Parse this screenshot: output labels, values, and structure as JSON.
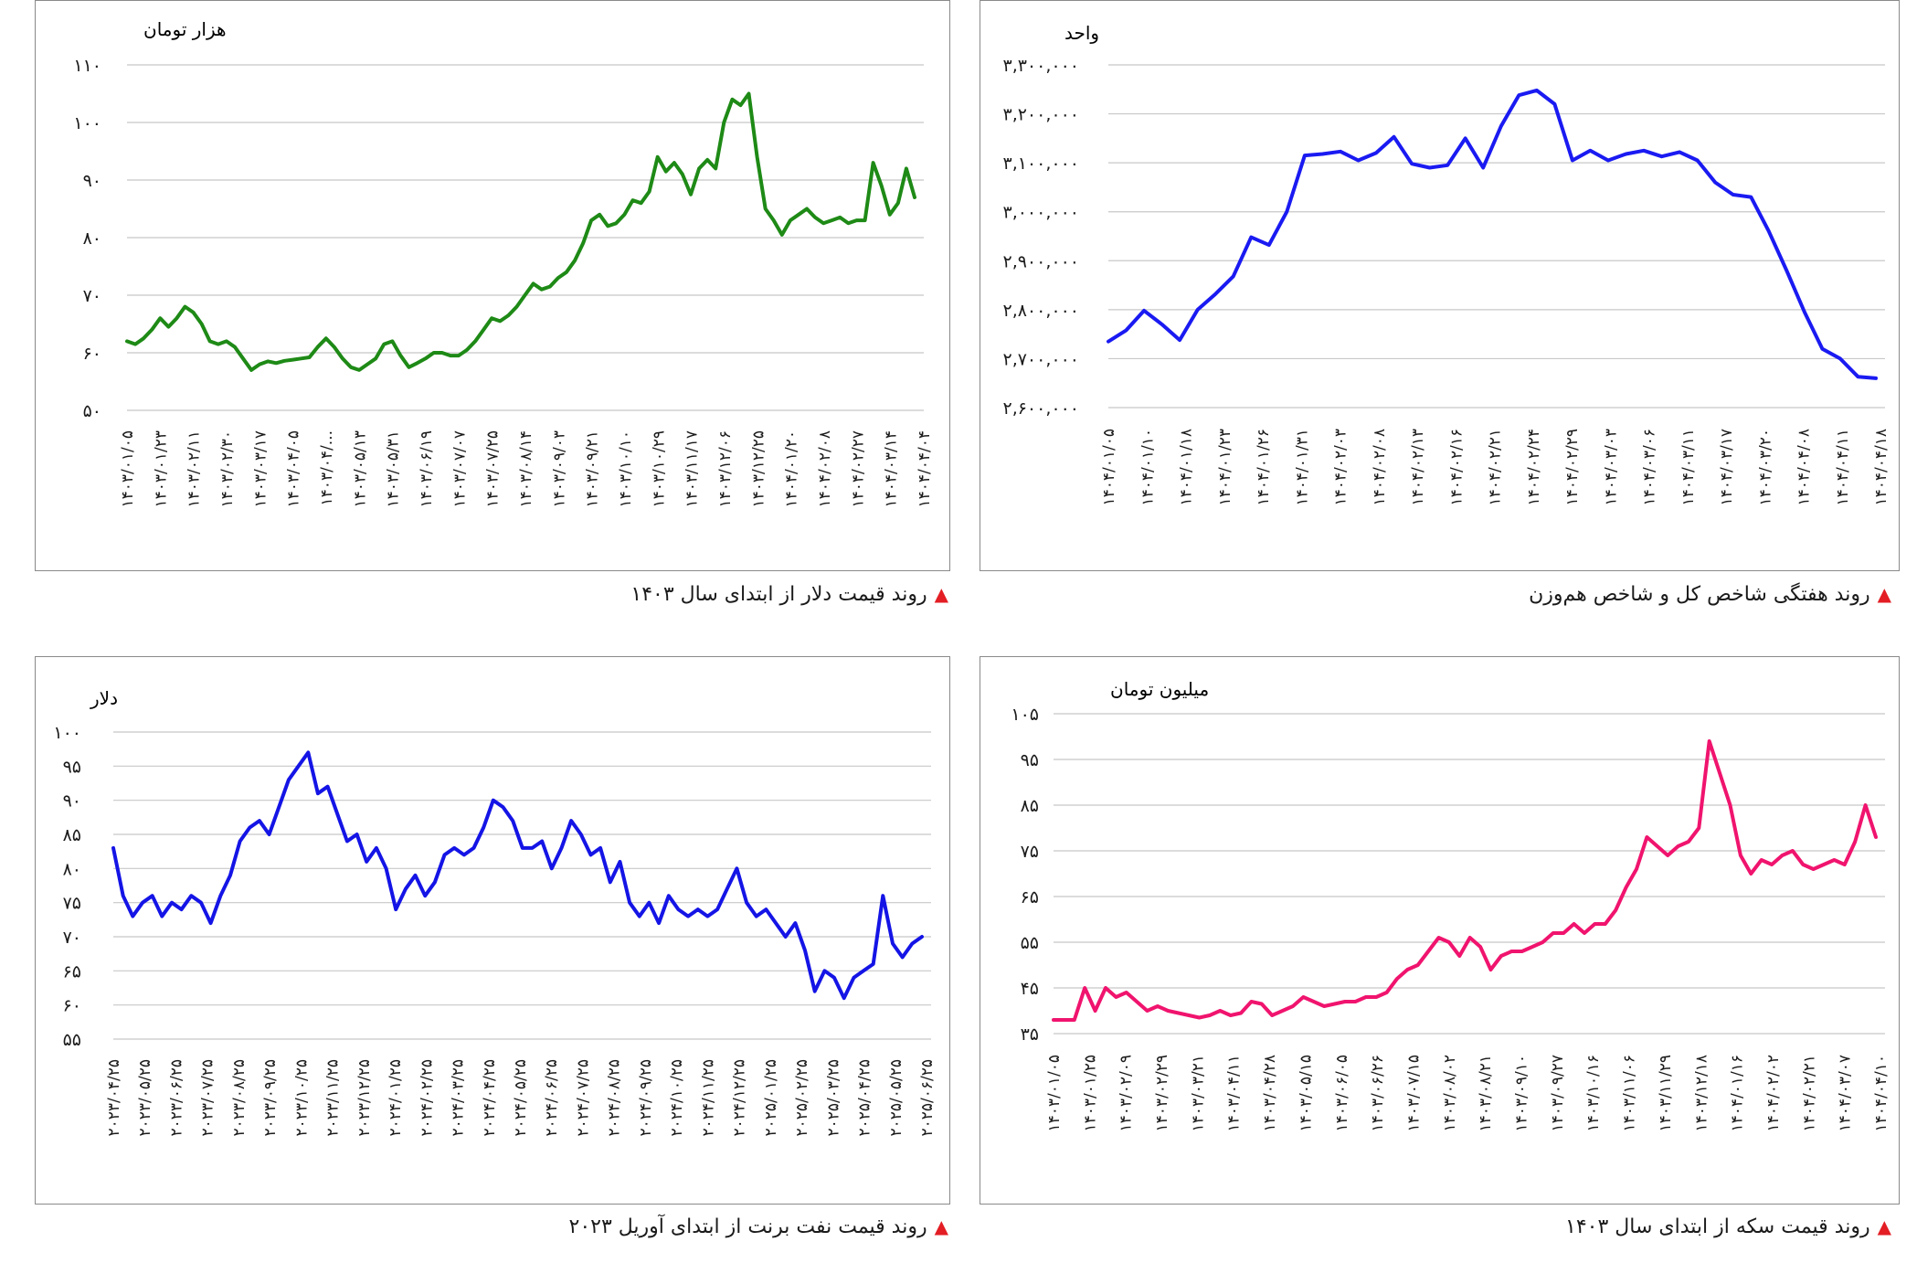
{
  "charts": [
    {
      "id": "dollar",
      "caption": "روند قیمت دلار از ابتدای سال ۱۴۰۳",
      "unit": "هزار تومان",
      "color": "#1e8a16",
      "chart_data": {
        "type": "line",
        "ylim": [
          50,
          110
        ],
        "yticks": [
          "۱۱۰",
          "۱۰۰",
          "۹۰",
          "۸۰",
          "۷۰",
          "۶۰",
          "۵۰"
        ],
        "ytick_values": [
          110,
          100,
          90,
          80,
          70,
          60,
          50
        ],
        "xticks": [
          "۱۴۰۳/۰۱/۰۵",
          "۱۴۰۳/۰۱/۲۳",
          "۱۴۰۳/۰۲/۱۱",
          "۱۴۰۳/۰۲/۳۰",
          "۱۴۰۳/۰۳/۱۷",
          "۱۴۰۳/۰۴/۰۵",
          "۱۴۰۳/۰۴/...",
          "۱۴۰۳/۰۵/۱۳",
          "۱۴۰۳/۰۵/۳۱",
          "۱۴۰۳/۰۶/۱۹",
          "۱۴۰۳/۰۷/۰۷",
          "۱۴۰۳/۰۷/۲۵",
          "۱۴۰۳/۰۸/۱۴",
          "۱۴۰۳/۰۹/۰۳",
          "۱۴۰۳/۰۹/۲۱",
          "۱۴۰۳/۱۰/۱۰",
          "۱۴۰۳/۱۰/۲۹",
          "۱۴۰۳/۱۱/۱۷",
          "۱۴۰۳/۱۲/۰۶",
          "۱۴۰۳/۱۲/۲۵",
          "۱۴۰۴/۰۱/۲۰",
          "۱۴۰۴/۰۲/۰۸",
          "۱۴۰۴/۰۲/۲۷",
          "۱۴۰۴/۰۳/۱۴",
          "۱۴۰۴/۰۴/۰۴"
        ],
        "series": [
          {
            "values": [
              62,
              61.5,
              62.5,
              64,
              66,
              64.5,
              66,
              68,
              67,
              65,
              62,
              61.5,
              62,
              61,
              59,
              57,
              58,
              58.5,
              58.2,
              58.6,
              58.8,
              59,
              59.2,
              61,
              62.5,
              61,
              59,
              57.5,
              57,
              58,
              59,
              61.5,
              62,
              59.5,
              57.5,
              58.2,
              59,
              60,
              60,
              59.5,
              59.5,
              60.5,
              62,
              64,
              66,
              65.5,
              66.5,
              68,
              70,
              72,
              71,
              71.5,
              73,
              74,
              76,
              79,
              83,
              84,
              82,
              82.5,
              84,
              86.5,
              86,
              88,
              94,
              91.5,
              93,
              91,
              87.5,
              92,
              93.5,
              92,
              100,
              104,
              103,
              105,
              94,
              85,
              83,
              80.5,
              83,
              84,
              85,
              83.5,
              82.5,
              83,
              83.5,
              82.5,
              83,
              83,
              93,
              89,
              84,
              86,
              92,
              87
            ]
          }
        ]
      }
    },
    {
      "id": "index",
      "caption": "روند هفتگی شاخص کل و شاخص هم‌وزن",
      "unit": "واحد",
      "color": "#1a1af2",
      "chart_data": {
        "type": "line",
        "ylim": [
          2600000,
          3300000
        ],
        "yticks": [
          "۳,۳۰۰,۰۰۰",
          "۳,۲۰۰,۰۰۰",
          "۳,۱۰۰,۰۰۰",
          "۳,۰۰۰,۰۰۰",
          "۲,۹۰۰,۰۰۰",
          "۲,۸۰۰,۰۰۰",
          "۲,۷۰۰,۰۰۰",
          "۲,۶۰۰,۰۰۰"
        ],
        "ytick_values": [
          3300000,
          3200000,
          3100000,
          3000000,
          2900000,
          2800000,
          2700000,
          2600000
        ],
        "xticks": [
          "۱۴۰۴/۰۱/۰۵",
          "۱۴۰۴/۰۱/۱۰",
          "۱۴۰۴/۰۱/۱۸",
          "۱۴۰۴/۰۱/۲۳",
          "۱۴۰۴/۰۱/۲۶",
          "۱۴۰۴/۰۱/۳۱",
          "۱۴۰۴/۰۲/۰۳",
          "۱۴۰۴/۰۲/۰۸",
          "۱۴۰۴/۰۲/۱۳",
          "۱۴۰۴/۰۲/۱۶",
          "۱۴۰۴/۰۲/۲۱",
          "۱۴۰۴/۰۲/۲۴",
          "۱۴۰۴/۰۲/۲۹",
          "۱۴۰۴/۰۳/۰۳",
          "۱۴۰۴/۰۳/۰۶",
          "۱۴۰۴/۰۳/۱۱",
          "۱۴۰۴/۰۳/۱۷",
          "۱۴۰۴/۰۳/۲۰",
          "۱۴۰۴/۰۴/۰۸",
          "۱۴۰۴/۰۴/۱۱",
          "۱۴۰۴/۰۴/۱۸"
        ],
        "series": [
          {
            "values": [
              2735000,
              2758000,
              2798000,
              2770000,
              2738000,
              2800000,
              2832000,
              2868000,
              2948000,
              2932000,
              3000000,
              3115000,
              3118000,
              3123000,
              3105000,
              3120000,
              3153000,
              3098000,
              3090000,
              3095000,
              3150000,
              3090000,
              3175000,
              3238000,
              3248000,
              3220000,
              3105000,
              3125000,
              3105000,
              3118000,
              3125000,
              3113000,
              3122000,
              3105000,
              3060000,
              3035000,
              3030000,
              2960000,
              2880000,
              2795000,
              2720000,
              2700000,
              2663000,
              2660000
            ]
          }
        ]
      }
    },
    {
      "id": "brent",
      "caption": "روند قیمت نفت برنت از ابتدای آوریل ۲۰۲۳",
      "unit": "دلار",
      "color": "#1414e6",
      "chart_data": {
        "type": "line",
        "ylim": [
          55,
          100
        ],
        "yticks": [
          "۱۰۰",
          "۹۵",
          "۹۰",
          "۸۵",
          "۸۰",
          "۷۵",
          "۷۰",
          "۶۵",
          "۶۰",
          "۵۵"
        ],
        "ytick_values": [
          100,
          95,
          90,
          85,
          80,
          75,
          70,
          65,
          60,
          55
        ],
        "xticks": [
          "۲۰۲۳/۰۴/۲۵",
          "۲۰۲۳/۰۵/۲۵",
          "۲۰۲۳/۰۶/۲۵",
          "۲۰۲۳/۰۷/۲۵",
          "۲۰۲۳/۰۸/۲۵",
          "۲۰۲۳/۰۹/۲۵",
          "۲۰۲۳/۱۰/۲۵",
          "۲۰۲۳/۱۱/۲۵",
          "۲۰۲۳/۱۲/۲۵",
          "۲۰۲۴/۰۱/۲۵",
          "۲۰۲۴/۰۲/۲۵",
          "۲۰۲۴/۰۳/۲۵",
          "۲۰۲۴/۰۴/۲۵",
          "۲۰۲۴/۰۵/۲۵",
          "۲۰۲۴/۰۶/۲۵",
          "۲۰۲۴/۰۷/۲۵",
          "۲۰۲۴/۰۸/۲۵",
          "۲۰۲۴/۰۹/۲۵",
          "۲۰۲۴/۱۰/۲۵",
          "۲۰۲۴/۱۱/۲۵",
          "۲۰۲۴/۱۲/۲۵",
          "۲۰۲۵/۰۱/۲۵",
          "۲۰۲۵/۰۲/۲۵",
          "۲۰۲۵/۰۳/۲۵",
          "۲۰۲۵/۰۴/۲۵",
          "۲۰۲۵/۰۵/۲۵",
          "۲۰۲۵/۰۶/۲۵"
        ],
        "series": [
          {
            "values": [
              83,
              76,
              73,
              75,
              76,
              73,
              75,
              74,
              76,
              75,
              72,
              76,
              79,
              84,
              86,
              87,
              85,
              89,
              93,
              95,
              97,
              91,
              92,
              88,
              84,
              85,
              81,
              83,
              80,
              74,
              77,
              79,
              76,
              78,
              82,
              83,
              82,
              83,
              86,
              90,
              89,
              87,
              83,
              83,
              84,
              80,
              83,
              87,
              85,
              82,
              83,
              78,
              81,
              75,
              73,
              75,
              72,
              76,
              74,
              73,
              74,
              73,
              74,
              77,
              80,
              75,
              73,
              74,
              72,
              70,
              72,
              68,
              62,
              65,
              64,
              61,
              64,
              65,
              66,
              76,
              69,
              67,
              69,
              70
            ]
          }
        ]
      }
    },
    {
      "id": "coin",
      "caption": "روند قیمت سکه از ابتدای سال ۱۴۰۳",
      "unit": "میلیون تومان",
      "color": "#f0146e",
      "chart_data": {
        "type": "line",
        "ylim": [
          35,
          105
        ],
        "yticks": [
          "۱۰۵",
          "۹۵",
          "۸۵",
          "۷۵",
          "۶۵",
          "۵۵",
          "۴۵",
          "۳۵"
        ],
        "ytick_values": [
          105,
          95,
          85,
          75,
          65,
          55,
          45,
          35
        ],
        "xticks": [
          "۱۴۰۳/۰۱/۰۵",
          "۱۴۰۳/۰۱/۲۵",
          "۱۴۰۳/۰۲/۰۹",
          "۱۴۰۳/۰۲/۲۹",
          "۱۴۰۳/۰۳/۲۱",
          "۱۴۰۳/۰۴/۱۱",
          "۱۴۰۳/۰۴/۲۸",
          "۱۴۰۳/۰۵/۱۵",
          "۱۴۰۳/۰۶/۰۵",
          "۱۴۰۳/۰۶/۲۶",
          "۱۴۰۳/۰۷/۱۵",
          "۱۴۰۳/۰۸/۰۲",
          "۱۴۰۳/۰۸/۲۱",
          "۱۴۰۳/۰۹/۱۰",
          "۱۴۰۳/۰۹/۲۷",
          "۱۴۰۳/۱۰/۱۶",
          "۱۴۰۳/۱۱/۰۶",
          "۱۴۰۳/۱۱/۲۹",
          "۱۴۰۳/۱۲/۱۸",
          "۱۴۰۴/۰۱/۱۶",
          "۱۴۰۴/۰۲/۰۲",
          "۱۴۰۴/۰۲/۲۱",
          "۱۴۰۴/۰۳/۰۷",
          "۱۴۰۴/۰۴/۱۰"
        ],
        "series": [
          {
            "values": [
              38,
              38,
              38,
              45,
              40,
              45,
              43,
              44,
              42,
              40,
              41,
              40,
              39.5,
              39,
              38.5,
              39,
              40,
              39,
              39.5,
              42,
              41.5,
              39,
              40,
              41,
              43,
              42,
              41,
              41.5,
              42,
              42,
              43,
              43,
              44,
              47,
              49,
              50,
              53,
              56,
              55,
              52,
              56,
              54,
              49,
              52,
              53,
              53,
              54,
              55,
              57,
              57,
              59,
              57,
              59,
              59,
              62,
              67,
              71,
              78,
              76,
              74,
              76,
              77,
              80,
              99,
              92,
              85,
              74,
              70,
              73,
              72,
              74,
              75,
              72,
              71,
              72,
              73,
              72,
              77,
              85,
              78
            ]
          }
        ]
      }
    }
  ]
}
